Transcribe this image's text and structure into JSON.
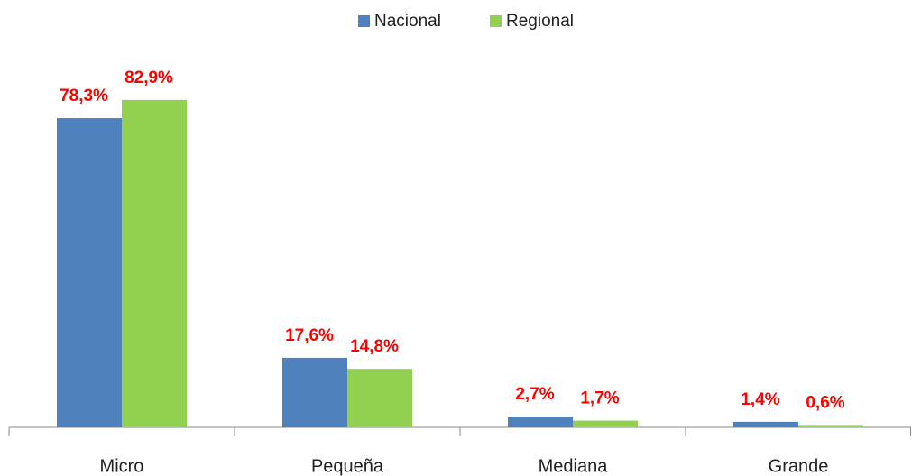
{
  "chart_data": {
    "type": "bar",
    "categories": [
      "Micro",
      "Pequeña",
      "Mediana",
      "Grande"
    ],
    "series": [
      {
        "name": "Nacional",
        "color": "#4f81bd",
        "values": [
          78.3,
          17.6,
          2.7,
          1.4
        ],
        "value_labels": [
          "78,3%",
          "17,6%",
          "2,7%",
          "1,4%"
        ]
      },
      {
        "name": "Regional",
        "color": "#92d050",
        "values": [
          82.9,
          14.8,
          1.7,
          0.6
        ],
        "value_labels": [
          "82,9%",
          "14,8%",
          "1,7%",
          "0,6%"
        ]
      }
    ],
    "legend": "top"
  }
}
